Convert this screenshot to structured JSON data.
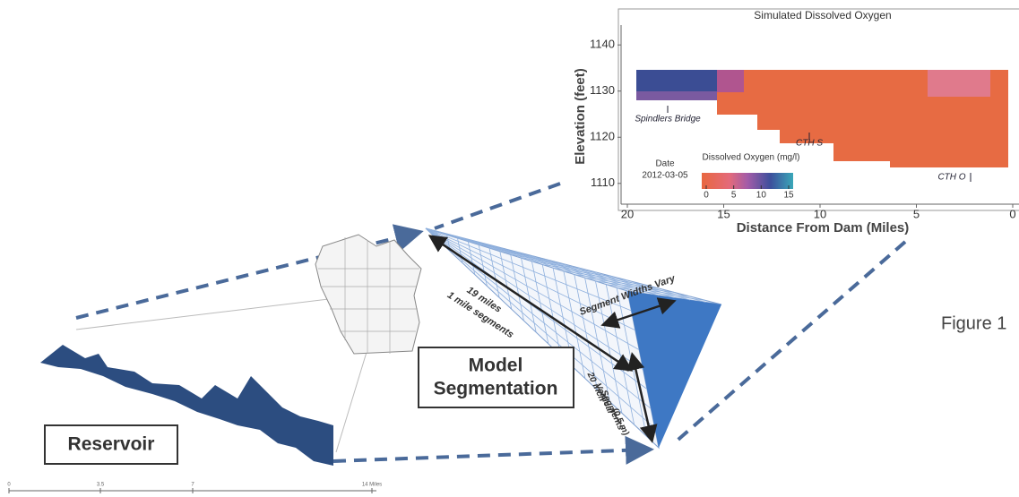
{
  "inset_chart": {
    "type": "heatmap",
    "title": "Simulated Dissolved Oxygen",
    "x_label": "Distance From Dam (Miles)",
    "y_label": "Elevation (feet)",
    "xlim": [
      20,
      0
    ],
    "ylim": [
      1105.5,
      1144.3
    ],
    "xticks": [
      20,
      15,
      10,
      5,
      0
    ],
    "yticks": [
      1110,
      1120,
      1130,
      1140
    ],
    "annotations": [
      "Spindlers Bridge",
      "CTH S",
      "CTH O"
    ],
    "date_label": "Date",
    "date": "2012-03-05",
    "colorbar": {
      "label": "Dissolved Oxygen (mg/l)",
      "lim": [
        0,
        15
      ],
      "ticks": [
        0,
        5,
        10,
        15
      ]
    }
  },
  "diagram": {
    "reservoir_label": "Reservoir",
    "model_label": [
      "Model",
      "Segmentation"
    ],
    "length_label": [
      "19 miles",
      "1 mile segments"
    ],
    "width_label": "Segment Widths Vary",
    "vertical_label": [
      "20 inch",
      "Vertical",
      "Segments",
      "(0.5 m)"
    ],
    "scale_bar": [
      "0",
      "3.5",
      "7",
      "14 Miles"
    ]
  },
  "caption": "Figure 1"
}
